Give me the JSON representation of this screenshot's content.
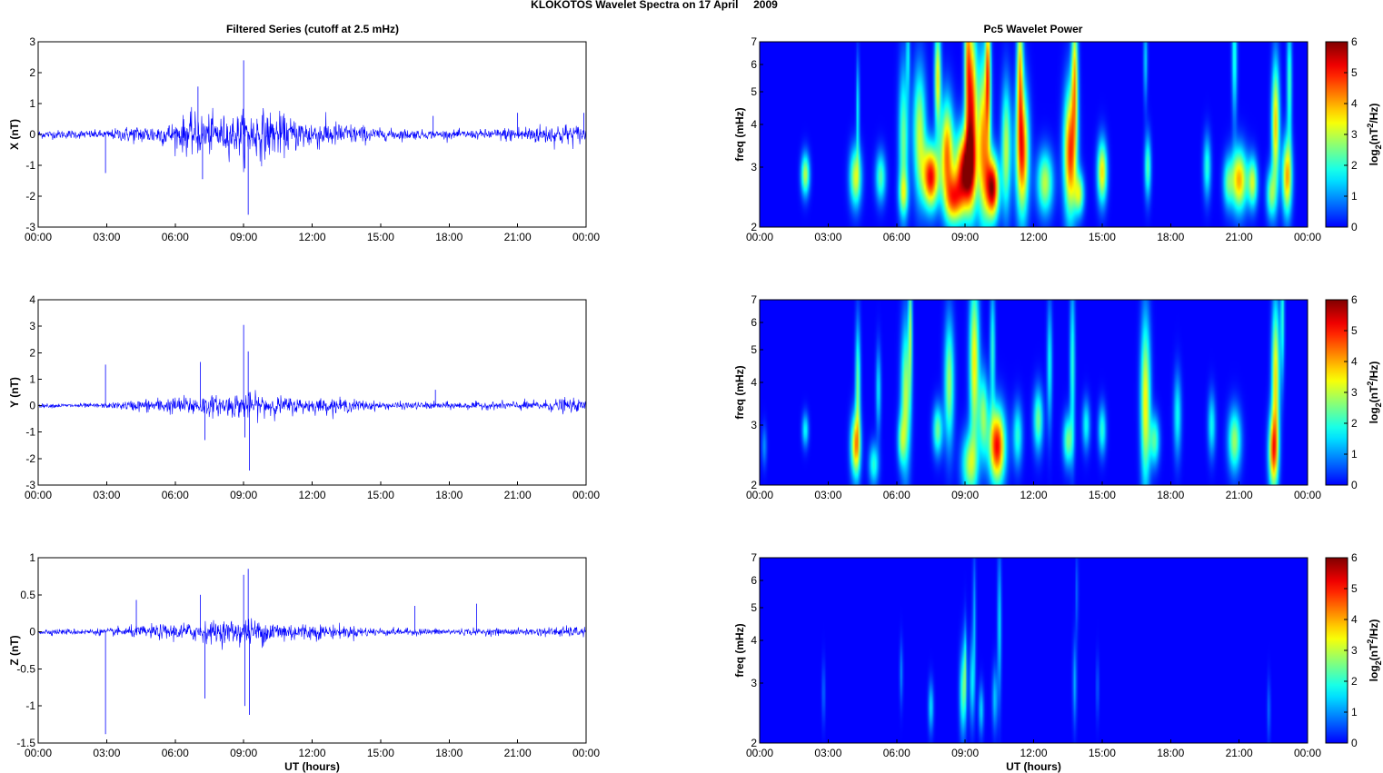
{
  "figure": {
    "suptitle": "KLOKOTOS Wavelet Spectra on 17 April     2009",
    "left_title": "Filtered Series (cutoff at 2.5 mHz)",
    "right_title": "Pc5 Wavelet Power",
    "xlabel": "UT (hours)"
  },
  "chart_data": [
    {
      "type": "line",
      "title": "Filtered Series (cutoff at 2.5 mHz)",
      "component": "X",
      "ylabel": "X (nT)",
      "xlabel": "",
      "xlim": [
        0,
        24
      ],
      "ylim": [
        -3,
        3
      ],
      "xticks": [
        0,
        3,
        6,
        9,
        12,
        15,
        18,
        21,
        24
      ],
      "xticklabels": [
        "00:00",
        "03:00",
        "06:00",
        "09:00",
        "12:00",
        "15:00",
        "18:00",
        "21:00",
        "00:00"
      ],
      "yticks": [
        -3,
        -2,
        -1,
        0,
        1,
        2,
        3
      ],
      "yticklabels": [
        "-3",
        "-2",
        "-1",
        "0",
        "1",
        "2",
        "3"
      ],
      "color": "#0000ff",
      "envelope_x": [
        0,
        3,
        4,
        5,
        6,
        6.5,
        7,
        7.5,
        8,
        8.5,
        9,
        9.5,
        10,
        10.5,
        11,
        12,
        13,
        14,
        15,
        16,
        17,
        18,
        19,
        20,
        21,
        22,
        23,
        24
      ],
      "envelope_amp": [
        0.15,
        0.15,
        0.3,
        0.35,
        0.45,
        0.7,
        0.75,
        0.7,
        0.65,
        0.7,
        0.8,
        0.9,
        0.85,
        0.75,
        0.6,
        0.55,
        0.45,
        0.35,
        0.2,
        0.2,
        0.15,
        0.15,
        0.15,
        0.2,
        0.3,
        0.35,
        0.4,
        0.3
      ],
      "spikes": [
        [
          2.95,
          -1.25
        ],
        [
          7.0,
          1.55
        ],
        [
          7.2,
          -1.45
        ],
        [
          9.0,
          2.4
        ],
        [
          9.05,
          -1.1
        ],
        [
          9.2,
          -2.6
        ],
        [
          17.3,
          0.6
        ],
        [
          21.0,
          0.7
        ],
        [
          23.9,
          0.7
        ]
      ]
    },
    {
      "type": "line",
      "component": "Y",
      "ylabel": "Y (nT)",
      "xlabel": "",
      "xlim": [
        0,
        24
      ],
      "ylim": [
        -3,
        4
      ],
      "xticks": [
        0,
        3,
        6,
        9,
        12,
        15,
        18,
        21,
        24
      ],
      "xticklabels": [
        "00:00",
        "03:00",
        "06:00",
        "09:00",
        "12:00",
        "15:00",
        "18:00",
        "21:00",
        "00:00"
      ],
      "yticks": [
        -3,
        -2,
        -1,
        0,
        1,
        2,
        3,
        4
      ],
      "yticklabels": [
        "-3",
        "-2",
        "-1",
        "0",
        "1",
        "2",
        "3",
        "4"
      ],
      "color": "#0000ff",
      "envelope_x": [
        0,
        3,
        4,
        5,
        6,
        7,
        8,
        9,
        10,
        11,
        12,
        13,
        14,
        15,
        16,
        17,
        18,
        19,
        20,
        21,
        22,
        23,
        24
      ],
      "envelope_amp": [
        0.08,
        0.1,
        0.2,
        0.3,
        0.35,
        0.45,
        0.4,
        0.55,
        0.45,
        0.35,
        0.3,
        0.3,
        0.25,
        0.15,
        0.15,
        0.15,
        0.15,
        0.15,
        0.15,
        0.2,
        0.2,
        0.3,
        0.2
      ],
      "spikes": [
        [
          2.95,
          1.55
        ],
        [
          7.1,
          1.65
        ],
        [
          7.3,
          -1.3
        ],
        [
          9.0,
          3.05
        ],
        [
          9.05,
          -1.2
        ],
        [
          9.2,
          2.05
        ],
        [
          9.25,
          -2.45
        ],
        [
          17.4,
          0.6
        ]
      ]
    },
    {
      "type": "line",
      "component": "Z",
      "ylabel": "Z (nT)",
      "xlabel": "UT (hours)",
      "xlim": [
        0,
        24
      ],
      "ylim": [
        -1.5,
        1
      ],
      "xticks": [
        0,
        3,
        6,
        9,
        12,
        15,
        18,
        21,
        24
      ],
      "xticklabels": [
        "00:00",
        "03:00",
        "06:00",
        "09:00",
        "12:00",
        "15:00",
        "18:00",
        "21:00",
        "00:00"
      ],
      "yticks": [
        -1.5,
        -1,
        -0.5,
        0,
        0.5,
        1
      ],
      "yticklabels": [
        "-1.5",
        "-1",
        "-0.5",
        "0",
        "0.5",
        "1"
      ],
      "color": "#0000ff",
      "envelope_x": [
        0,
        3,
        4,
        5,
        6,
        7,
        8,
        9,
        10,
        11,
        12,
        13,
        14,
        15,
        16,
        17,
        18,
        19,
        20,
        21,
        22,
        23,
        24
      ],
      "envelope_amp": [
        0.04,
        0.05,
        0.08,
        0.1,
        0.12,
        0.15,
        0.16,
        0.2,
        0.18,
        0.15,
        0.12,
        0.1,
        0.08,
        0.06,
        0.05,
        0.05,
        0.05,
        0.05,
        0.05,
        0.05,
        0.06,
        0.08,
        0.07
      ],
      "spikes": [
        [
          2.95,
          -1.38
        ],
        [
          4.3,
          0.43
        ],
        [
          7.1,
          0.5
        ],
        [
          7.3,
          -0.9
        ],
        [
          9.0,
          0.77
        ],
        [
          9.05,
          -1.0
        ],
        [
          9.2,
          0.85
        ],
        [
          9.25,
          -1.12
        ],
        [
          16.5,
          0.35
        ],
        [
          19.2,
          0.38
        ]
      ]
    },
    {
      "type": "heatmap",
      "title": "Pc5 Wavelet Power",
      "component": "X",
      "ylabel": "freq (mHz)",
      "xlabel": "",
      "xlim": [
        0,
        24
      ],
      "ylim": [
        2,
        7
      ],
      "yscale": "log",
      "xticks": [
        0,
        3,
        6,
        9,
        12,
        15,
        18,
        21,
        24
      ],
      "xticklabels": [
        "00:00",
        "03:00",
        "06:00",
        "09:00",
        "12:00",
        "15:00",
        "18:00",
        "21:00",
        "00:00"
      ],
      "yticks": [
        2,
        3,
        4,
        5,
        6,
        7
      ],
      "yticklabels": [
        "2",
        "3",
        "4",
        "5",
        "6",
        "7"
      ],
      "colorbar": {
        "label": "log2(nT²/Hz)",
        "label_main": "log",
        "label_sub": "2",
        "label_tail": "(nT",
        "label_sup": "2",
        "label_end": "/Hz)",
        "range": [
          0,
          6
        ],
        "ticks": [
          0,
          1,
          2,
          3,
          4,
          5,
          6
        ],
        "ticklabels": [
          "0",
          "1",
          "2",
          "3",
          "4",
          "5",
          "6"
        ],
        "colormap": "jet"
      },
      "blobs": [
        [
          2.0,
          2.85,
          0.13,
          0.1,
          3.0
        ],
        [
          4.2,
          2.8,
          0.18,
          0.14,
          3.2
        ],
        [
          4.3,
          4.4,
          0.05,
          0.25,
          1.8
        ],
        [
          5.3,
          2.8,
          0.16,
          0.12,
          2.3
        ],
        [
          6.3,
          3.6,
          0.15,
          0.35,
          2.5
        ],
        [
          6.3,
          2.5,
          0.15,
          0.1,
          2.0
        ],
        [
          6.5,
          6.5,
          0.06,
          0.2,
          1.5
        ],
        [
          7.0,
          3.8,
          0.2,
          0.3,
          3.0
        ],
        [
          7.5,
          2.8,
          0.25,
          0.15,
          5.2
        ],
        [
          7.8,
          5.5,
          0.1,
          0.25,
          3.5
        ],
        [
          8.2,
          3.3,
          0.2,
          0.25,
          4.2
        ],
        [
          8.5,
          2.4,
          0.25,
          0.12,
          3.5
        ],
        [
          9.0,
          2.9,
          0.3,
          0.2,
          5.8
        ],
        [
          9.3,
          4.5,
          0.15,
          0.4,
          4.5
        ],
        [
          9.1,
          6.2,
          0.1,
          0.4,
          3.2
        ],
        [
          9.8,
          3.6,
          0.2,
          0.4,
          4.0
        ],
        [
          10.2,
          2.6,
          0.2,
          0.15,
          5.6
        ],
        [
          10.0,
          5.8,
          0.08,
          0.3,
          3.8
        ],
        [
          10.8,
          3.4,
          0.15,
          0.3,
          3.0
        ],
        [
          11.5,
          3.3,
          0.2,
          0.3,
          4.8
        ],
        [
          11.4,
          5.8,
          0.1,
          0.3,
          3.5
        ],
        [
          12.5,
          2.7,
          0.25,
          0.15,
          3.0
        ],
        [
          13.6,
          3.3,
          0.2,
          0.3,
          4.8
        ],
        [
          13.8,
          5.6,
          0.1,
          0.3,
          3.5
        ],
        [
          14.0,
          2.5,
          0.15,
          0.1,
          2.8
        ],
        [
          15.0,
          2.9,
          0.15,
          0.15,
          3.6
        ],
        [
          17.0,
          3.0,
          0.1,
          0.15,
          2.3
        ],
        [
          16.9,
          6.2,
          0.06,
          0.2,
          1.5
        ],
        [
          19.6,
          3.0,
          0.12,
          0.15,
          2.0
        ],
        [
          20.5,
          2.7,
          0.15,
          0.12,
          2.0
        ],
        [
          21.0,
          2.75,
          0.25,
          0.15,
          4.0
        ],
        [
          21.6,
          2.7,
          0.15,
          0.12,
          3.0
        ],
        [
          20.8,
          6.3,
          0.08,
          0.3,
          2.0
        ],
        [
          22.6,
          4.0,
          0.12,
          0.3,
          3.8
        ],
        [
          22.4,
          2.5,
          0.15,
          0.12,
          2.5
        ],
        [
          23.1,
          2.8,
          0.15,
          0.18,
          4.0
        ],
        [
          23.2,
          5.3,
          0.08,
          0.3,
          2.2
        ]
      ]
    },
    {
      "type": "heatmap",
      "component": "Y",
      "ylabel": "freq (mHz)",
      "xlabel": "",
      "xlim": [
        0,
        24
      ],
      "ylim": [
        2,
        7
      ],
      "yscale": "log",
      "xticks": [
        0,
        3,
        6,
        9,
        12,
        15,
        18,
        21,
        24
      ],
      "xticklabels": [
        "00:00",
        "03:00",
        "06:00",
        "09:00",
        "12:00",
        "15:00",
        "18:00",
        "21:00",
        "00:00"
      ],
      "yticks": [
        2,
        3,
        4,
        5,
        6,
        7
      ],
      "yticklabels": [
        "2",
        "3",
        "4",
        "5",
        "6",
        "7"
      ],
      "colorbar": {
        "label": "log2(nT²/Hz)",
        "label_main": "log",
        "label_sub": "2",
        "label_tail": "(nT",
        "label_sup": "2",
        "label_end": "/Hz)",
        "range": [
          0,
          6
        ],
        "ticks": [
          0,
          1,
          2,
          3,
          4,
          5,
          6
        ],
        "ticklabels": [
          "0",
          "1",
          "2",
          "3",
          "4",
          "5",
          "6"
        ],
        "colormap": "jet"
      },
      "blobs": [
        [
          0.2,
          2.6,
          0.08,
          0.1,
          1.0
        ],
        [
          2.0,
          2.9,
          0.1,
          0.08,
          1.8
        ],
        [
          4.2,
          2.6,
          0.15,
          0.15,
          3.8
        ],
        [
          4.3,
          3.9,
          0.08,
          0.3,
          2.5
        ],
        [
          5.0,
          2.3,
          0.15,
          0.1,
          2.0
        ],
        [
          5.2,
          3.8,
          0.08,
          0.2,
          1.6
        ],
        [
          6.4,
          3.6,
          0.15,
          0.35,
          3.0
        ],
        [
          6.6,
          5.8,
          0.06,
          0.3,
          2.5
        ],
        [
          6.2,
          2.7,
          0.12,
          0.12,
          2.0
        ],
        [
          7.8,
          2.9,
          0.15,
          0.12,
          2.5
        ],
        [
          8.3,
          4.0,
          0.15,
          0.3,
          2.8
        ],
        [
          9.4,
          4.6,
          0.15,
          0.4,
          3.5
        ],
        [
          9.2,
          2.3,
          0.25,
          0.15,
          2.8
        ],
        [
          9.8,
          3.2,
          0.15,
          0.2,
          2.6
        ],
        [
          10.4,
          2.6,
          0.25,
          0.18,
          5.2
        ],
        [
          10.2,
          5.0,
          0.08,
          0.3,
          2.0
        ],
        [
          11.3,
          2.8,
          0.15,
          0.15,
          2.0
        ],
        [
          12.2,
          3.1,
          0.15,
          0.15,
          2.5
        ],
        [
          12.7,
          4.5,
          0.08,
          0.3,
          1.8
        ],
        [
          13.5,
          2.7,
          0.15,
          0.12,
          2.5
        ],
        [
          13.7,
          4.5,
          0.08,
          0.4,
          2.0
        ],
        [
          14.3,
          3.0,
          0.12,
          0.12,
          1.8
        ],
        [
          15.0,
          2.9,
          0.12,
          0.12,
          2.0
        ],
        [
          16.9,
          3.5,
          0.15,
          0.4,
          3.5
        ],
        [
          17.3,
          2.7,
          0.15,
          0.12,
          2.3
        ],
        [
          18.3,
          3.2,
          0.12,
          0.2,
          1.8
        ],
        [
          19.8,
          3.0,
          0.12,
          0.15,
          1.8
        ],
        [
          20.8,
          2.7,
          0.2,
          0.15,
          2.8
        ],
        [
          22.5,
          2.5,
          0.15,
          0.18,
          4.2
        ],
        [
          22.6,
          4.2,
          0.12,
          0.35,
          3.6
        ],
        [
          22.9,
          6.2,
          0.06,
          0.3,
          2.0
        ]
      ]
    },
    {
      "type": "heatmap",
      "component": "Z",
      "ylabel": "freq (mHz)",
      "xlabel": "UT (hours)",
      "xlim": [
        0,
        24
      ],
      "ylim": [
        2,
        7
      ],
      "yscale": "log",
      "xticks": [
        0,
        3,
        6,
        9,
        12,
        15,
        18,
        21,
        24
      ],
      "xticklabels": [
        "00:00",
        "03:00",
        "06:00",
        "09:00",
        "12:00",
        "15:00",
        "18:00",
        "21:00",
        "00:00"
      ],
      "yticks": [
        2,
        3,
        4,
        5,
        6,
        7
      ],
      "yticklabels": [
        "2",
        "3",
        "4",
        "5",
        "6",
        "7"
      ],
      "colorbar": {
        "label": "log2(nT²/Hz)",
        "label_main": "log",
        "label_sub": "2",
        "label_tail": "(nT",
        "label_sup": "2",
        "label_end": "/Hz)",
        "range": [
          0,
          6
        ],
        "ticks": [
          0,
          1,
          2,
          3,
          4,
          5,
          6
        ],
        "ticklabels": [
          "0",
          "1",
          "2",
          "3",
          "4",
          "5",
          "6"
        ],
        "colormap": "jet"
      },
      "blobs": [
        [
          2.8,
          2.8,
          0.05,
          0.15,
          0.8
        ],
        [
          6.2,
          3.2,
          0.05,
          0.15,
          1.0
        ],
        [
          7.5,
          2.55,
          0.08,
          0.12,
          1.6
        ],
        [
          8.9,
          2.8,
          0.1,
          0.2,
          2.2
        ],
        [
          9.0,
          3.4,
          0.05,
          0.2,
          1.6
        ],
        [
          9.3,
          3.0,
          0.08,
          0.2,
          1.6
        ],
        [
          9.4,
          4.6,
          0.05,
          0.3,
          1.2
        ],
        [
          9.7,
          2.5,
          0.08,
          0.12,
          1.5
        ],
        [
          10.3,
          2.7,
          0.08,
          0.15,
          1.4
        ],
        [
          10.5,
          4.4,
          0.06,
          0.35,
          1.6
        ],
        [
          13.8,
          3.0,
          0.06,
          0.2,
          1.2
        ],
        [
          13.9,
          5.5,
          0.04,
          0.2,
          0.8
        ],
        [
          14.8,
          2.9,
          0.04,
          0.15,
          0.8
        ],
        [
          22.3,
          2.5,
          0.05,
          0.15,
          0.8
        ]
      ]
    }
  ]
}
